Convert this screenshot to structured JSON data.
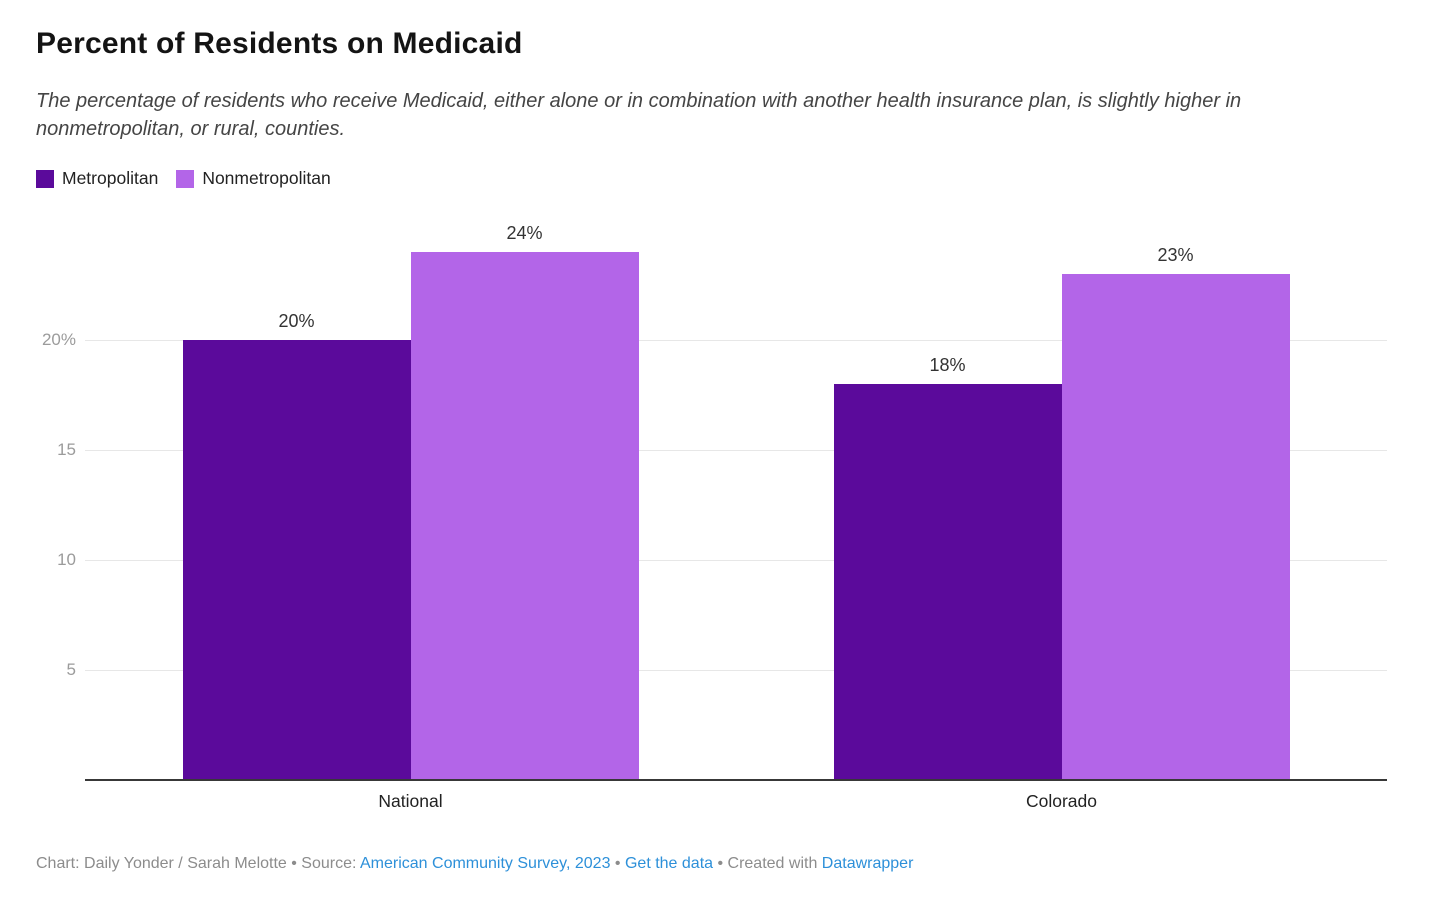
{
  "header": {
    "title": "Percent of Residents on Medicaid",
    "subtitle": "The percentage of residents who receive Medicaid, either alone or in combination with another health insurance plan, is slightly higher in nonmetropolitan, or rural, counties."
  },
  "chart_data": {
    "type": "bar",
    "subtype": "grouped-column",
    "categories": [
      "National",
      "Colorado"
    ],
    "series": [
      {
        "name": "Metropolitan",
        "color": "#5b0a9b",
        "values": [
          20,
          18
        ]
      },
      {
        "name": "Nonmetropolitan",
        "color": "#b365e8",
        "values": [
          24,
          23
        ]
      }
    ],
    "value_labels": [
      [
        "20%",
        "24%"
      ],
      [
        "18%",
        "23%"
      ]
    ],
    "yticks": [
      {
        "value": 5,
        "label": "5"
      },
      {
        "value": 10,
        "label": "10"
      },
      {
        "value": 15,
        "label": "15"
      },
      {
        "value": 20,
        "label": "20%"
      }
    ],
    "ylim": [
      0,
      25
    ],
    "grid": "horizontal",
    "legend_position": "top-left",
    "gridline_color": "#e7e7e7",
    "axis_line_color": "#383838",
    "ytick_label_color": "#9b9b9b",
    "value_label_color": "#333333",
    "category_label_color": "#222222"
  },
  "footer": {
    "credit_text": "Chart: Daily Yonder / Sarah Melotte • Source: ",
    "source_link": "American Community Survey, 2023",
    "sep1": " • ",
    "get_data_link": "Get the data",
    "sep2": " • Created with ",
    "datawrapper_link": "Datawrapper",
    "link_color": "#2d90d9"
  }
}
